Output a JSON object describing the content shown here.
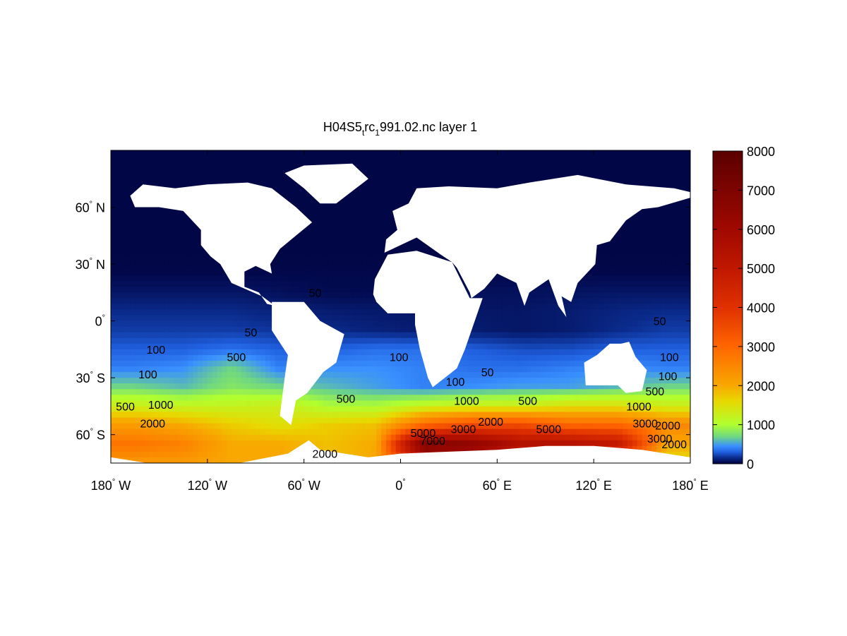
{
  "chart_data": {
    "type": "heatmap",
    "title_parts": [
      "H04S5",
      "t",
      "rc",
      "1",
      "991.02.nc layer 1"
    ],
    "xlim": [
      -180,
      180
    ],
    "ylim": [
      -75,
      90
    ],
    "x_ticks": [
      {
        "value": -180,
        "label": "180",
        "deg": "°",
        "hemi": " W"
      },
      {
        "value": -120,
        "label": "120",
        "deg": "°",
        "hemi": " W"
      },
      {
        "value": -60,
        "label": "60",
        "deg": "°",
        "hemi": " W"
      },
      {
        "value": 0,
        "label": "0",
        "deg": "°",
        "hemi": ""
      },
      {
        "value": 60,
        "label": "60",
        "deg": "°",
        "hemi": " E"
      },
      {
        "value": 120,
        "label": "120",
        "deg": "°",
        "hemi": " E"
      },
      {
        "value": 180,
        "label": "180",
        "deg": "°",
        "hemi": " E"
      }
    ],
    "y_ticks": [
      {
        "value": 60,
        "label": "60",
        "deg": "°",
        "hemi": " N"
      },
      {
        "value": 30,
        "label": "30",
        "deg": "°",
        "hemi": " N"
      },
      {
        "value": 0,
        "label": "0",
        "deg": "°",
        "hemi": ""
      },
      {
        "value": -30,
        "label": "30",
        "deg": "°",
        "hemi": " S"
      },
      {
        "value": -60,
        "label": "60",
        "deg": "°",
        "hemi": " S"
      }
    ],
    "colorbar": {
      "range": [
        0,
        8000
      ],
      "ticks": [
        "0",
        "1000",
        "2000",
        "3000",
        "4000",
        "5000",
        "6000",
        "7000",
        "8000"
      ],
      "colormap": [
        [
          0,
          "#00003c"
        ],
        [
          150,
          "#0a2a8a"
        ],
        [
          300,
          "#2060e0"
        ],
        [
          450,
          "#3a90ff"
        ],
        [
          700,
          "#70d880"
        ],
        [
          1000,
          "#b0ff30"
        ],
        [
          1600,
          "#e8d800"
        ],
        [
          2000,
          "#f8a800"
        ],
        [
          3000,
          "#ff6600"
        ],
        [
          4000,
          "#e03000"
        ],
        [
          5000,
          "#c01800"
        ],
        [
          6000,
          "#a00800"
        ],
        [
          8000,
          "#5a0000"
        ]
      ]
    },
    "grid": {
      "lon_centers": [
        -165,
        -135,
        -105,
        -75,
        -45,
        -15,
        15,
        45,
        75,
        105,
        135,
        165
      ],
      "lat_centers": [
        85,
        75,
        65,
        55,
        45,
        35,
        25,
        15,
        5,
        -5,
        -15,
        -25,
        -35,
        -45,
        -55,
        -65,
        -75
      ],
      "values": [
        [
          20,
          20,
          20,
          20,
          20,
          20,
          20,
          20,
          20,
          20,
          20,
          20
        ],
        [
          20,
          20,
          20,
          20,
          20,
          20,
          20,
          20,
          20,
          20,
          20,
          20
        ],
        [
          20,
          20,
          20,
          20,
          20,
          20,
          20,
          20,
          20,
          20,
          20,
          20
        ],
        [
          20,
          20,
          20,
          20,
          20,
          20,
          20,
          20,
          20,
          20,
          20,
          20
        ],
        [
          20,
          20,
          20,
          20,
          20,
          20,
          20,
          20,
          20,
          20,
          20,
          20
        ],
        [
          20,
          20,
          20,
          20,
          20,
          20,
          20,
          20,
          20,
          20,
          20,
          20
        ],
        [
          30,
          30,
          30,
          30,
          30,
          30,
          30,
          30,
          30,
          30,
          30,
          30
        ],
        [
          80,
          80,
          80,
          60,
          40,
          40,
          40,
          60,
          60,
          70,
          80,
          80
        ],
        [
          150,
          150,
          150,
          120,
          100,
          90,
          80,
          80,
          80,
          100,
          130,
          150
        ],
        [
          200,
          200,
          200,
          180,
          150,
          120,
          100,
          100,
          80,
          100,
          150,
          200
        ],
        [
          300,
          300,
          350,
          300,
          300,
          350,
          350,
          300,
          250,
          250,
          300,
          300
        ],
        [
          400,
          450,
          700,
          400,
          450,
          450,
          400,
          350,
          350,
          400,
          450,
          400
        ],
        [
          700,
          600,
          800,
          700,
          600,
          500,
          400,
          450,
          500,
          500,
          600,
          700
        ],
        [
          1300,
          1200,
          1200,
          1300,
          1000,
          1000,
          1200,
          1300,
          1300,
          1500,
          1500,
          1300
        ],
        [
          2200,
          2000,
          1700,
          1500,
          1700,
          1800,
          3000,
          3500,
          3500,
          3000,
          3000,
          2500
        ],
        [
          2800,
          2600,
          2000,
          2000,
          1800,
          2000,
          7000,
          6500,
          5500,
          5500,
          5000,
          2000
        ],
        [
          2200,
          2200,
          2000,
          2000,
          1800,
          2000,
          5000,
          5000,
          4000,
          4000,
          3000,
          1500
        ]
      ]
    },
    "contour_labels": [
      {
        "text": "50",
        "lon": -53,
        "lat": 15
      },
      {
        "text": "50",
        "lon": -93,
        "lat": -6
      },
      {
        "text": "100",
        "lon": -152,
        "lat": -15
      },
      {
        "text": "500",
        "lon": -102,
        "lat": -19
      },
      {
        "text": "100",
        "lon": -157,
        "lat": -28
      },
      {
        "text": "500",
        "lon": -171,
        "lat": -45
      },
      {
        "text": "1000",
        "lon": -149,
        "lat": -44
      },
      {
        "text": "2000",
        "lon": -154,
        "lat": -54
      },
      {
        "text": "100",
        "lon": -1,
        "lat": -19
      },
      {
        "text": "50",
        "lon": 54,
        "lat": -27
      },
      {
        "text": "100",
        "lon": 34,
        "lat": -32
      },
      {
        "text": "500",
        "lon": -34,
        "lat": -41
      },
      {
        "text": "1000",
        "lon": 41,
        "lat": -42
      },
      {
        "text": "500",
        "lon": 79,
        "lat": -42
      },
      {
        "text": "2000",
        "lon": 56,
        "lat": -53
      },
      {
        "text": "3000",
        "lon": 39,
        "lat": -57
      },
      {
        "text": "5000",
        "lon": 14,
        "lat": -59
      },
      {
        "text": "7000",
        "lon": 20,
        "lat": -63
      },
      {
        "text": "5000",
        "lon": 92,
        "lat": -57
      },
      {
        "text": "2000",
        "lon": -47,
        "lat": -70
      },
      {
        "text": "50",
        "lon": 161,
        "lat": 0
      },
      {
        "text": "100",
        "lon": 167,
        "lat": -19
      },
      {
        "text": "100",
        "lon": 166,
        "lat": -29
      },
      {
        "text": "500",
        "lon": 158,
        "lat": -37
      },
      {
        "text": "1000",
        "lon": 148,
        "lat": -45
      },
      {
        "text": "3000",
        "lon": 152,
        "lat": -54
      },
      {
        "text": "2000",
        "lon": 166,
        "lat": -55
      },
      {
        "text": "3000",
        "lon": 161,
        "lat": -62
      },
      {
        "text": "2000",
        "lon": 170,
        "lat": -65
      }
    ]
  }
}
